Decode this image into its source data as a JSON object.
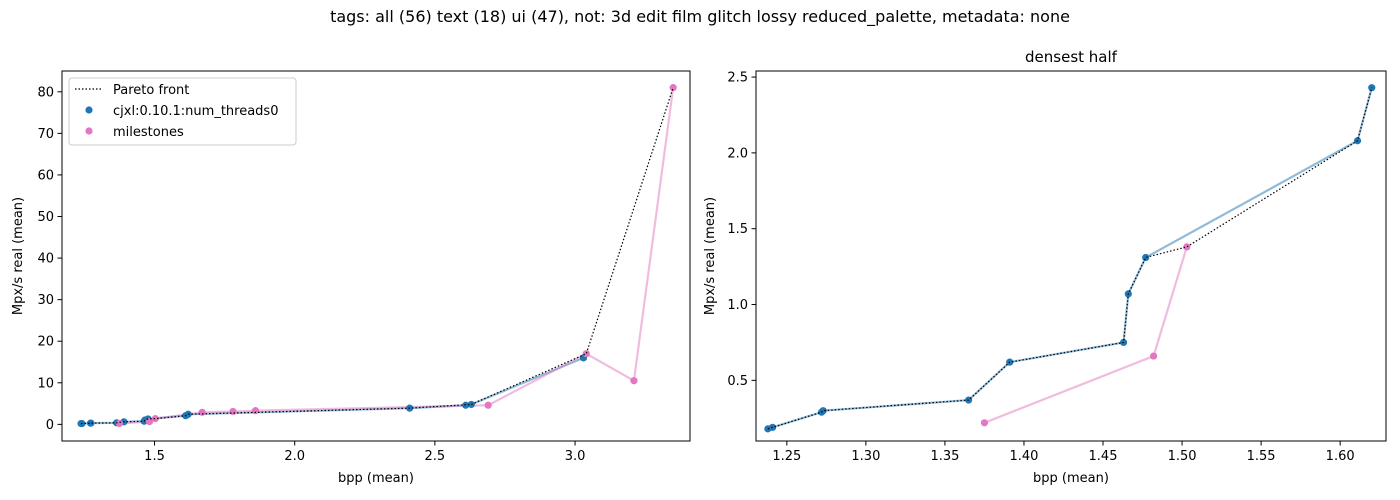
{
  "suptitle": "tags: all (56) text (18) ui (47), not: 3d edit film glitch lossy reduced_palette, metadata: none",
  "colors": {
    "pareto": "#000000",
    "series": "#1f77b4",
    "milestones": "#e377c2"
  },
  "legend": {
    "pareto": "Pareto front",
    "series": "cjxl:0.10.1:num_threads0",
    "milestones": "milestones"
  },
  "chart_data": [
    {
      "type": "scatter",
      "title": "",
      "xlabel": "bpp (mean)",
      "ylabel": "Mpx/s real (mean)",
      "xlim": [
        1.17,
        3.41
      ],
      "ylim": [
        -4,
        85
      ],
      "xticks": [
        1.5,
        2.0,
        2.5,
        3.0
      ],
      "xtick_labels": [
        "1.5",
        "2.0",
        "2.5",
        "3.0"
      ],
      "yticks": [
        0,
        10,
        20,
        30,
        40,
        50,
        60,
        70,
        80
      ],
      "ytick_labels": [
        "0",
        "10",
        "20",
        "30",
        "40",
        "50",
        "60",
        "70",
        "80"
      ],
      "legend_position": "upper-left",
      "series": [
        {
          "name": "cjxl:0.10.1:num_threads0",
          "x": [
            1.238,
            1.241,
            1.272,
            1.273,
            1.365,
            1.391,
            1.463,
            1.466,
            1.477,
            1.611,
            1.62,
            2.41,
            2.61,
            2.63,
            3.03
          ],
          "y": [
            0.18,
            0.19,
            0.29,
            0.3,
            0.37,
            0.62,
            0.75,
            1.07,
            1.31,
            2.08,
            2.43,
            3.9,
            4.6,
            4.8,
            16.0
          ]
        },
        {
          "name": "milestones",
          "x": [
            1.375,
            1.482,
            1.503,
            1.67,
            1.78,
            1.86,
            2.69,
            3.04,
            3.21,
            3.35
          ],
          "y": [
            0.22,
            0.66,
            1.38,
            2.9,
            3.1,
            3.3,
            4.6,
            17.0,
            10.5,
            81.0
          ]
        }
      ],
      "pareto_front": {
        "x": [
          1.238,
          1.241,
          1.272,
          1.273,
          1.365,
          1.391,
          1.463,
          1.466,
          1.477,
          1.503,
          1.611,
          1.62,
          2.41,
          2.63,
          3.04,
          3.35
        ],
        "y": [
          0.18,
          0.19,
          0.29,
          0.3,
          0.37,
          0.62,
          0.75,
          1.07,
          1.31,
          1.38,
          2.08,
          2.43,
          3.9,
          4.8,
          17.0,
          81.0
        ]
      }
    },
    {
      "type": "scatter",
      "title": "densest half",
      "xlabel": "bpp (mean)",
      "ylabel": "Mpx/s real (mean)",
      "xlim": [
        1.2305,
        1.629
      ],
      "ylim": [
        0.1,
        2.54
      ],
      "xticks": [
        1.25,
        1.3,
        1.35,
        1.4,
        1.45,
        1.5,
        1.55,
        1.6
      ],
      "xtick_labels": [
        "1.25",
        "1.30",
        "1.35",
        "1.40",
        "1.45",
        "1.50",
        "1.55",
        "1.60"
      ],
      "yticks": [
        0.5,
        1.0,
        1.5,
        2.0,
        2.5
      ],
      "ytick_labels": [
        "0.5",
        "1.0",
        "1.5",
        "2.0",
        "2.5"
      ],
      "series": [
        {
          "name": "cjxl:0.10.1:num_threads0",
          "x": [
            1.238,
            1.241,
            1.272,
            1.273,
            1.365,
            1.391,
            1.463,
            1.466,
            1.477,
            1.611,
            1.62
          ],
          "y": [
            0.18,
            0.19,
            0.29,
            0.3,
            0.37,
            0.62,
            0.75,
            1.07,
            1.31,
            2.08,
            2.43
          ]
        },
        {
          "name": "milestones",
          "x": [
            1.375,
            1.482,
            1.503
          ],
          "y": [
            0.22,
            0.66,
            1.38
          ]
        }
      ],
      "pareto_front": {
        "x": [
          1.238,
          1.241,
          1.272,
          1.273,
          1.365,
          1.391,
          1.463,
          1.466,
          1.477,
          1.503,
          1.611,
          1.62
        ],
        "y": [
          0.18,
          0.19,
          0.29,
          0.3,
          0.37,
          0.62,
          0.75,
          1.07,
          1.31,
          1.38,
          2.08,
          2.43
        ]
      }
    }
  ]
}
